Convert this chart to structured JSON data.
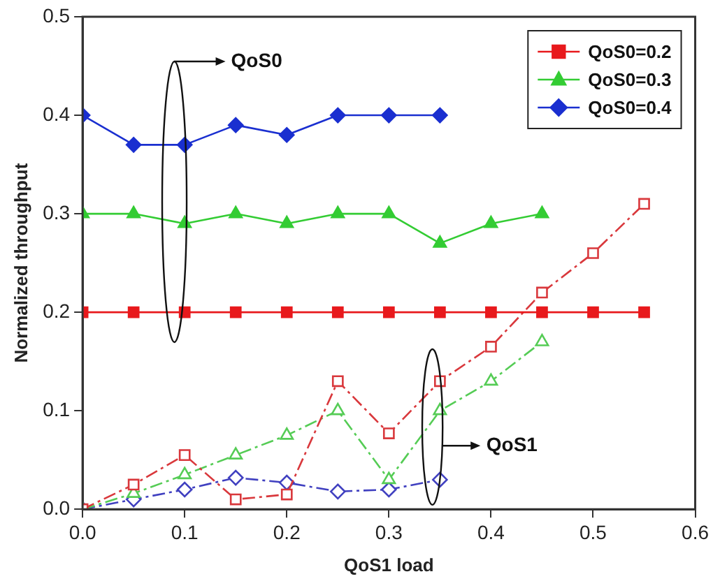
{
  "chart_data": {
    "type": "line",
    "xlabel": "QoS1 load",
    "ylabel": "Normalized throughput",
    "xlim": [
      0,
      0.6
    ],
    "xticks": [
      {
        "value": 0,
        "label": "0.0"
      },
      0.1,
      0.2,
      0.3,
      0.4,
      0.5,
      0.6
    ],
    "ylim": [
      0,
      0.5
    ],
    "yticks": [
      {
        "value": 0,
        "label": "0.0"
      },
      0.1,
      0.2,
      0.3,
      0.4,
      0.5
    ],
    "grid": false,
    "legend": "top right",
    "annotations": [
      "QoS0",
      "QoS1"
    ],
    "series": [
      {
        "name": "QoS0=0.2",
        "color": "#e8191c",
        "marker": "square",
        "line_style": "solid",
        "x": [
          0,
          0.05,
          0.1,
          0.15,
          0.2,
          0.25,
          0.3,
          0.35,
          0.4,
          0.45,
          0.5,
          0.55
        ],
        "values": [
          0.2,
          0.2,
          0.2,
          0.2,
          0.2,
          0.2,
          0.2,
          0.2,
          0.2,
          0.2,
          0.2,
          0.2
        ]
      },
      {
        "name": "QoS0=0.3",
        "color": "#33cc33",
        "marker": "triangle",
        "line_style": "solid",
        "x": [
          0,
          0.05,
          0.1,
          0.15,
          0.2,
          0.25,
          0.3,
          0.35,
          0.4,
          0.45
        ],
        "values": [
          0.3,
          0.3,
          0.29,
          0.3,
          0.29,
          0.3,
          0.3,
          0.27,
          0.29,
          0.3
        ]
      },
      {
        "name": "QoS0=0.4",
        "color": "#1a2fd0",
        "marker": "diamond",
        "line_style": "solid",
        "x": [
          0,
          0.05,
          0.1,
          0.15,
          0.2,
          0.25,
          0.3,
          0.35
        ],
        "values": [
          0.4,
          0.37,
          0.37,
          0.39,
          0.38,
          0.4,
          0.4,
          0.4
        ]
      },
      {
        "color": "#d9383c",
        "marker": "square",
        "line_style": "dashed",
        "x": [
          0,
          0.05,
          0.1,
          0.15,
          0.2,
          0.25,
          0.3,
          0.35,
          0.4,
          0.45,
          0.5,
          0.55
        ],
        "values": [
          0,
          0.025,
          0.055,
          0.01,
          0.015,
          0.13,
          0.077,
          0.13,
          0.165,
          0.22,
          0.26,
          0.31
        ]
      },
      {
        "color": "#55cc55",
        "marker": "triangle",
        "line_style": "dashed",
        "x": [
          0,
          0.05,
          0.1,
          0.15,
          0.2,
          0.25,
          0.3,
          0.35,
          0.4,
          0.45
        ],
        "values": [
          0,
          0.016,
          0.035,
          0.055,
          0.075,
          0.1,
          0.03,
          0.1,
          0.13,
          0.17
        ]
      },
      {
        "color": "#4040c0",
        "marker": "diamond",
        "line_style": "dashed",
        "x": [
          0,
          0.05,
          0.1,
          0.15,
          0.2,
          0.25,
          0.3,
          0.35
        ],
        "values": [
          0,
          0.01,
          0.02,
          0.032,
          0.027,
          0.018,
          0.02,
          0.03
        ]
      }
    ]
  }
}
